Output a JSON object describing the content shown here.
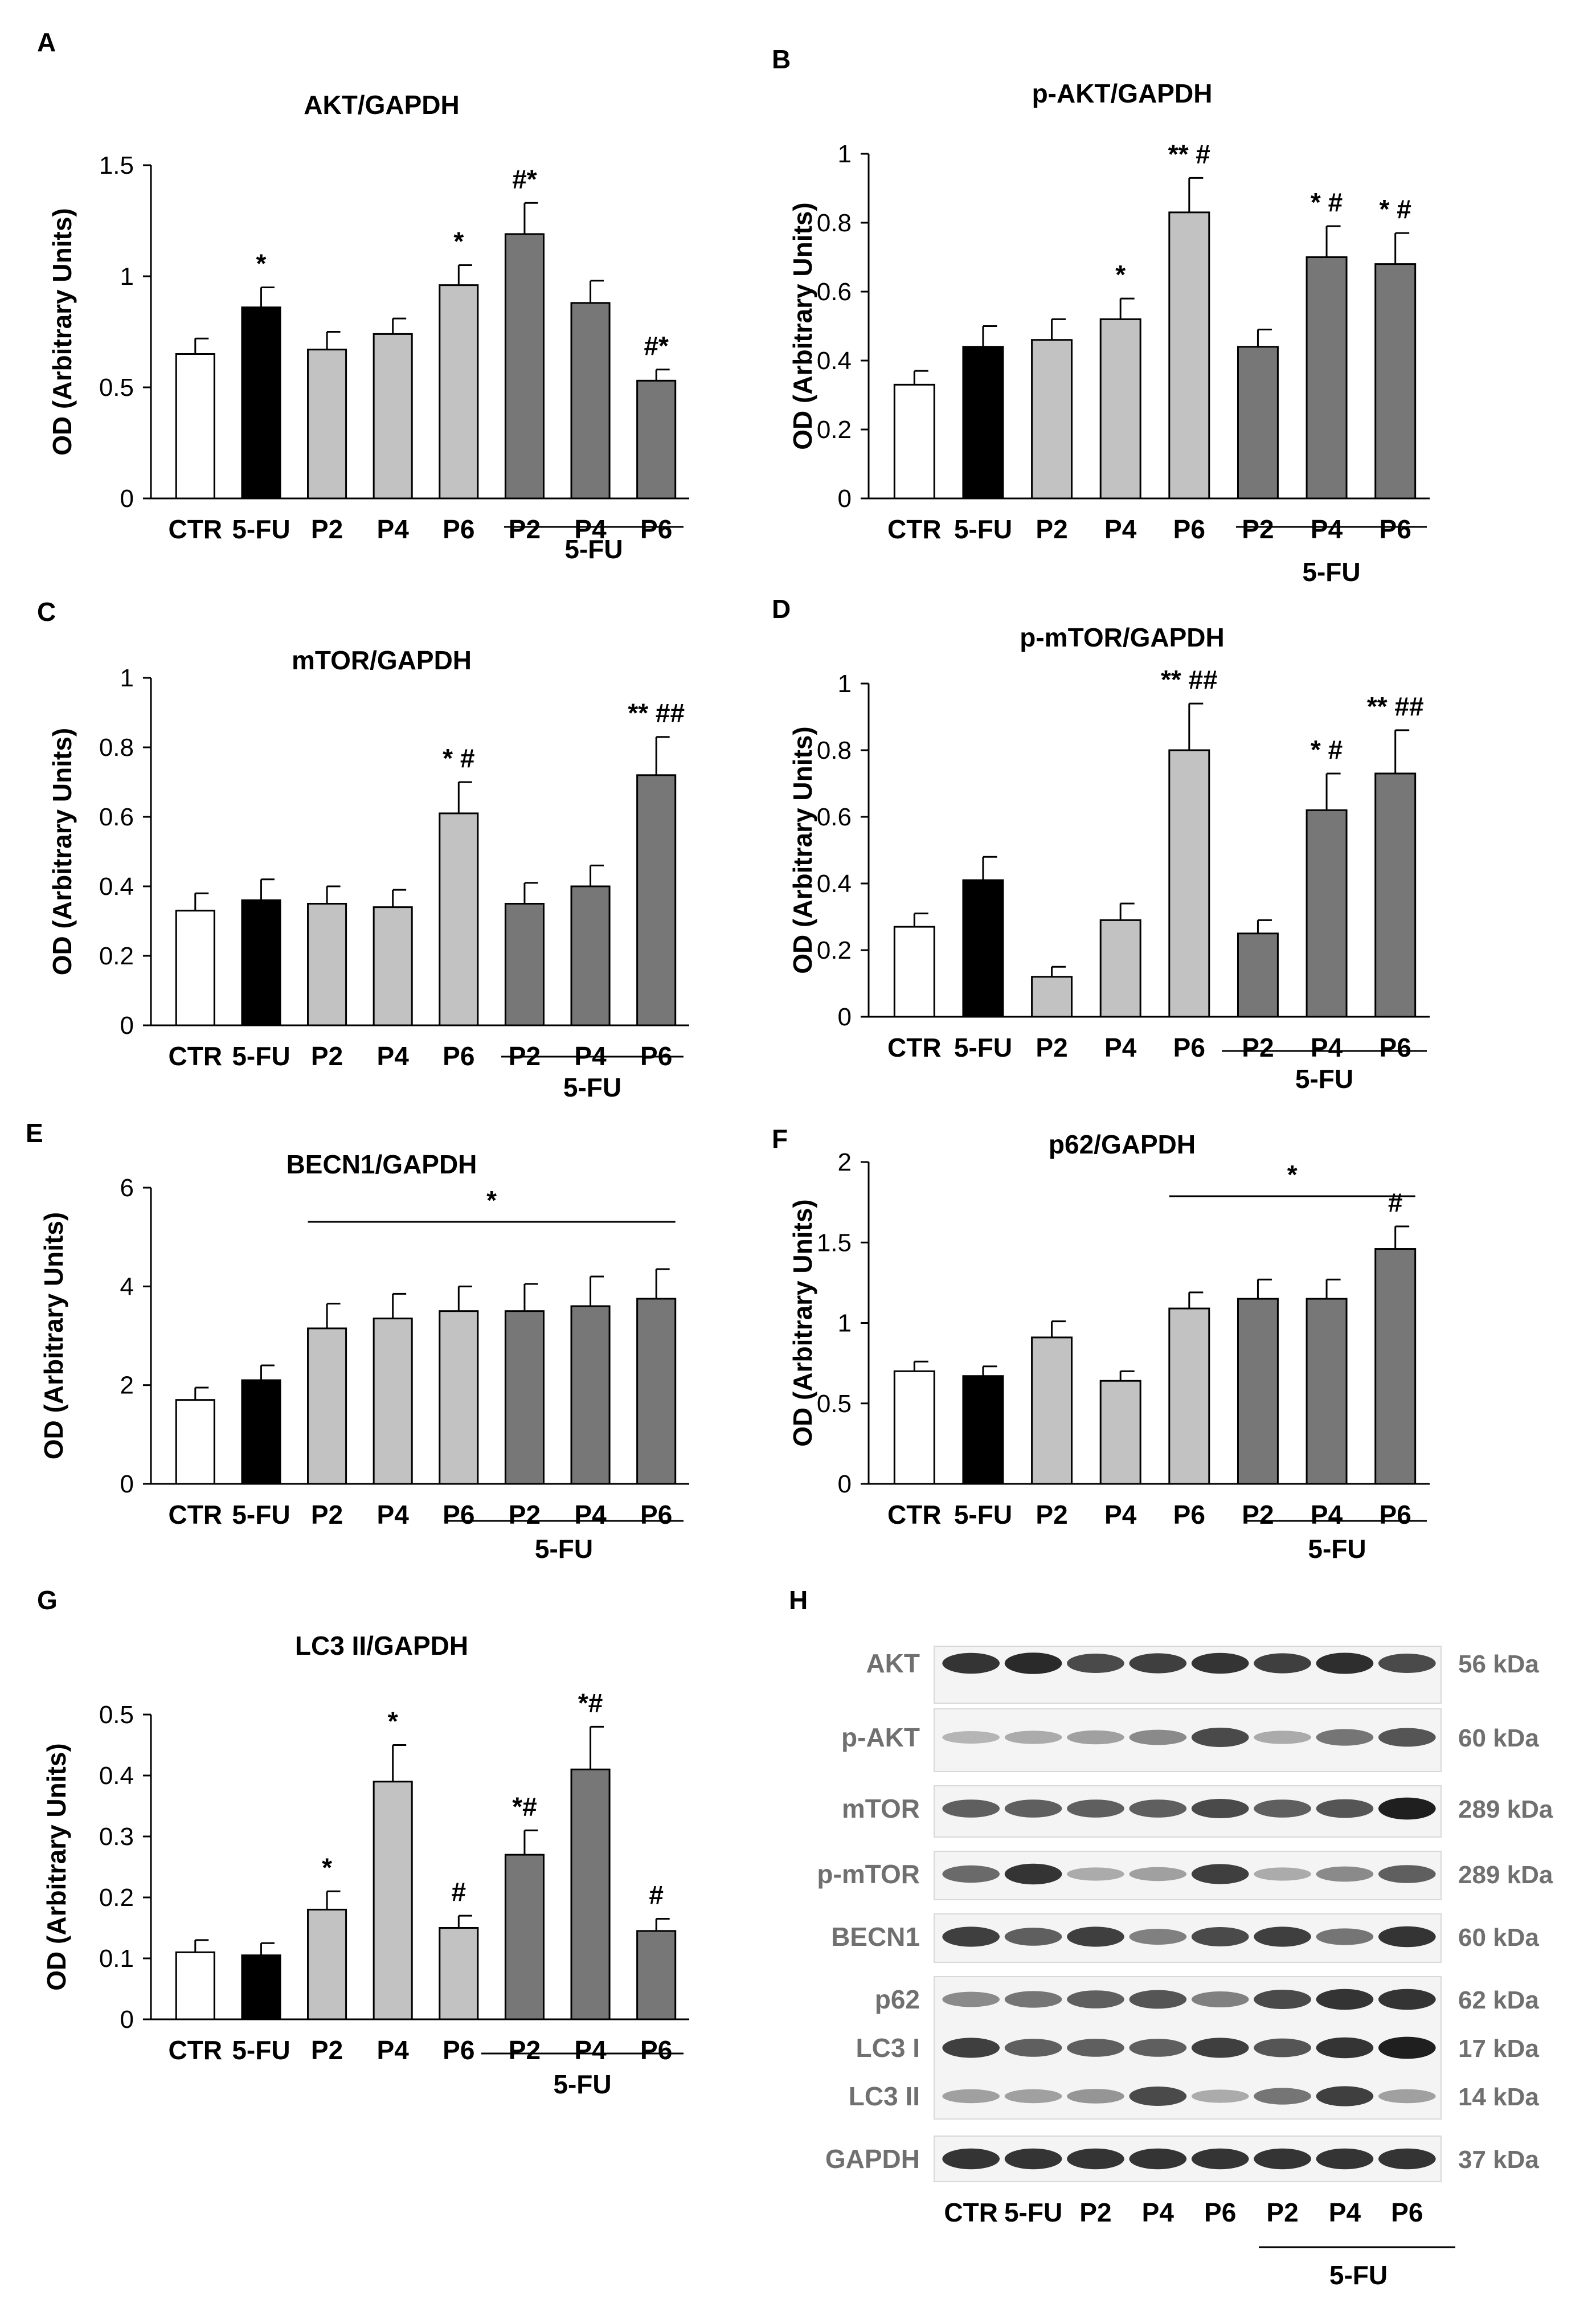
{
  "figure": {
    "y_axis_label": "OD (Arbitrary Units)",
    "group_label": "5-FU",
    "categories": [
      "CTR",
      "5-FU",
      "P2",
      "P4",
      "P6",
      "P2",
      "P4",
      "P6"
    ],
    "colors": {
      "ctr": "#ffffff",
      "fu": "#000000",
      "p_alone": "#c2c2c2",
      "p_alone_dark": "#a6a6a6",
      "p_fu": "#777777",
      "axis": "#000000"
    }
  },
  "chart_data": [
    {
      "letter": "A",
      "type": "bar",
      "title": "AKT/GAPDH",
      "categories": [
        "CTR",
        "5-FU",
        "P2",
        "P4",
        "P6",
        "P2",
        "P4",
        "P6"
      ],
      "values": [
        0.65,
        0.86,
        0.67,
        0.74,
        0.96,
        1.19,
        0.88,
        0.53
      ],
      "errors": [
        0.07,
        0.09,
        0.08,
        0.07,
        0.09,
        0.14,
        0.1,
        0.05
      ],
      "annotations": [
        "",
        "*",
        "",
        "",
        "*",
        "#*",
        "",
        "#*"
      ],
      "ylim": [
        0,
        1.5
      ],
      "yticks": [
        "0",
        "0.5",
        "1",
        "1.5"
      ],
      "ylabel": "OD (Arbitrary Units)",
      "bracket_label": "5-FU"
    },
    {
      "letter": "B",
      "type": "bar",
      "title": "p-AKT/GAPDH",
      "categories": [
        "CTR",
        "5-FU",
        "P2",
        "P4",
        "P6",
        "P2",
        "P4",
        "P6"
      ],
      "values": [
        0.33,
        0.44,
        0.46,
        0.52,
        0.83,
        0.44,
        0.7,
        0.68
      ],
      "errors": [
        0.04,
        0.06,
        0.06,
        0.06,
        0.1,
        0.05,
        0.09,
        0.09
      ],
      "annotations": [
        "",
        "",
        "",
        "*",
        "** #",
        "",
        "* #",
        "* #"
      ],
      "ylim": [
        0,
        1
      ],
      "yticks": [
        "0",
        "0.2",
        "0.4",
        "0.6",
        "0.8",
        "1"
      ],
      "ylabel": "OD (Arbitrary Units)",
      "bracket_label": "5-FU"
    },
    {
      "letter": "C",
      "type": "bar",
      "title": "mTOR/GAPDH",
      "categories": [
        "CTR",
        "5-FU",
        "P2",
        "P4",
        "P6",
        "P2",
        "P4",
        "P6"
      ],
      "values": [
        0.33,
        0.36,
        0.35,
        0.34,
        0.61,
        0.35,
        0.4,
        0.72
      ],
      "errors": [
        0.05,
        0.06,
        0.05,
        0.05,
        0.09,
        0.06,
        0.06,
        0.11
      ],
      "annotations": [
        "",
        "",
        "",
        "",
        "* #",
        "",
        "",
        "** ##"
      ],
      "ylim": [
        0,
        1
      ],
      "yticks": [
        "0",
        "0.2",
        "0.4",
        "0.6",
        "0.8",
        "1"
      ],
      "ylabel": "OD (Arbitrary Units)",
      "bracket_label": "5-FU"
    },
    {
      "letter": "D",
      "type": "bar",
      "title": "p-mTOR/GAPDH",
      "categories": [
        "CTR",
        "5-FU",
        "P2",
        "P4",
        "P6",
        "P2",
        "P4",
        "P6"
      ],
      "values": [
        0.27,
        0.41,
        0.12,
        0.29,
        0.8,
        0.25,
        0.62,
        0.73
      ],
      "errors": [
        0.04,
        0.07,
        0.03,
        0.05,
        0.14,
        0.04,
        0.11,
        0.13
      ],
      "annotations": [
        "",
        "",
        "",
        "",
        "** ##",
        "",
        "* #",
        "** ##"
      ],
      "ylim": [
        0,
        1
      ],
      "yticks": [
        "0",
        "0.2",
        "0.4",
        "0.6",
        "0.8",
        "1"
      ],
      "ylabel": "OD (Arbitrary Units)",
      "bracket_label": "5-FU"
    },
    {
      "letter": "E",
      "type": "bar",
      "title": "BECN1/GAPDH",
      "categories": [
        "CTR",
        "5-FU",
        "P2",
        "P4",
        "P6",
        "P2",
        "P4",
        "P6"
      ],
      "values": [
        1.7,
        2.1,
        3.15,
        3.35,
        3.5,
        3.5,
        3.6,
        3.75
      ],
      "errors": [
        0.25,
        0.3,
        0.5,
        0.5,
        0.5,
        0.55,
        0.6,
        0.6
      ],
      "annotations": [
        "",
        "",
        "",
        "",
        "",
        "",
        "",
        ""
      ],
      "sig_line": {
        "from": 2,
        "to": 7,
        "label": "*"
      },
      "ylim": [
        0,
        6
      ],
      "yticks": [
        "0",
        "2",
        "4",
        "6"
      ],
      "ylabel": "OD (Arbitrary Units)",
      "bracket_label": "5-FU"
    },
    {
      "letter": "F",
      "type": "bar",
      "title": "p62/GAPDH",
      "categories": [
        "CTR",
        "5-FU",
        "P2",
        "P4",
        "P6",
        "P2",
        "P4",
        "P6"
      ],
      "values": [
        0.7,
        0.67,
        0.91,
        0.64,
        1.09,
        1.15,
        1.15,
        1.46
      ],
      "errors": [
        0.06,
        0.06,
        0.1,
        0.06,
        0.1,
        0.12,
        0.12,
        0.14
      ],
      "annotations": [
        "",
        "",
        "",
        "",
        "",
        "",
        "",
        "#"
      ],
      "sig_line": {
        "from": 4,
        "to": 7,
        "label": "*"
      },
      "ylim": [
        0,
        2
      ],
      "yticks": [
        "0",
        "0.5",
        "1",
        "1.5",
        "2"
      ],
      "ylabel": "OD (Arbitrary Units)",
      "bracket_label": "5-FU"
    },
    {
      "letter": "G",
      "type": "bar",
      "title": "LC3 II/GAPDH",
      "categories": [
        "CTR",
        "5-FU",
        "P2",
        "P4",
        "P6",
        "P2",
        "P4",
        "P6"
      ],
      "values": [
        0.11,
        0.105,
        0.18,
        0.39,
        0.15,
        0.27,
        0.41,
        0.145
      ],
      "errors": [
        0.02,
        0.02,
        0.03,
        0.06,
        0.02,
        0.04,
        0.07,
        0.02
      ],
      "annotations": [
        "",
        "",
        "*",
        "*",
        "#",
        "*#",
        "*#",
        "#"
      ],
      "ylim": [
        0,
        0.5
      ],
      "yticks": [
        "0",
        "0.1",
        "0.2",
        "0.3",
        "0.4",
        "0.5"
      ],
      "ylabel": "OD (Arbitrary Units)",
      "bracket_label": "5-FU"
    }
  ],
  "blot": {
    "letter": "H",
    "rows": [
      {
        "name": "AKT",
        "kda": "56 kDa",
        "intensity": [
          0.85,
          0.9,
          0.75,
          0.8,
          0.85,
          0.8,
          0.88,
          0.75
        ]
      },
      {
        "name": "p-AKT",
        "kda": "60 kDa",
        "intensity": [
          0.25,
          0.3,
          0.35,
          0.45,
          0.75,
          0.3,
          0.55,
          0.7
        ]
      },
      {
        "name": "mTOR",
        "kda": "289 kDa",
        "intensity": [
          0.65,
          0.65,
          0.65,
          0.65,
          0.75,
          0.65,
          0.7,
          0.95
        ]
      },
      {
        "name": "p-mTOR",
        "kda": "289 kDa",
        "intensity": [
          0.6,
          0.85,
          0.3,
          0.35,
          0.8,
          0.3,
          0.45,
          0.65
        ]
      },
      {
        "name": "BECN1",
        "kda": "60 kDa",
        "intensity": [
          0.8,
          0.65,
          0.8,
          0.5,
          0.75,
          0.8,
          0.55,
          0.85
        ]
      },
      {
        "name": "p62",
        "kda": "62 kDa",
        "intensity": [
          0.45,
          0.55,
          0.65,
          0.7,
          0.5,
          0.75,
          0.85,
          0.85
        ]
      },
      {
        "name": "LC3 I",
        "kda": "17 kDa",
        "intensity": [
          0.8,
          0.65,
          0.65,
          0.65,
          0.8,
          0.7,
          0.85,
          0.95
        ]
      },
      {
        "name": "LC3 II",
        "kda": "14 kDa",
        "intensity": [
          0.35,
          0.35,
          0.4,
          0.75,
          0.3,
          0.55,
          0.8,
          0.35
        ]
      },
      {
        "name": "GAPDH",
        "kda": "37 kDa",
        "intensity": [
          0.85,
          0.85,
          0.85,
          0.85,
          0.85,
          0.85,
          0.85,
          0.85
        ]
      }
    ],
    "lanes": [
      "CTR",
      "5-FU",
      "P2",
      "P4",
      "P6",
      "P2",
      "P4",
      "P6"
    ],
    "group_label": "5-FU"
  }
}
